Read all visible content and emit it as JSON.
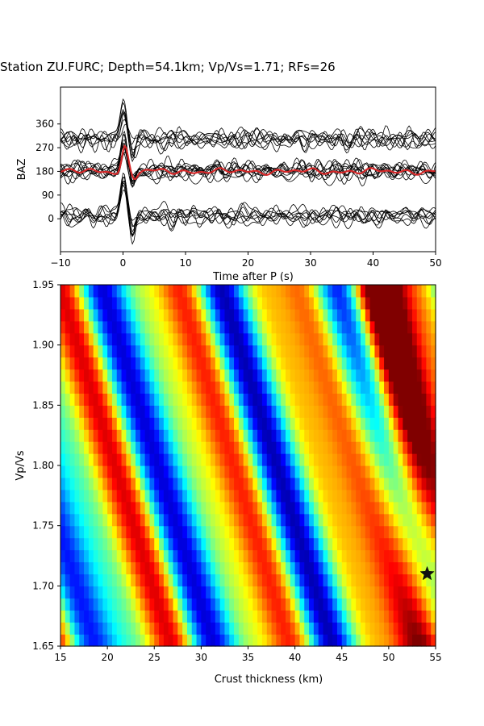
{
  "title": "Station ZU.FURC; Depth=54.1km; Vp/Vs=1.71; RFs=26",
  "chart_data": [
    {
      "type": "line",
      "xlabel": "Time after P (s)",
      "ylabel": "BAZ",
      "xlim": [
        -10,
        50
      ],
      "ylim": [
        -125,
        500
      ],
      "xticks": [
        "−10",
        "0",
        "10",
        "20",
        "30",
        "40",
        "50"
      ],
      "yticks": [
        "0",
        "90",
        "180",
        "270",
        "360"
      ],
      "baz_groups": [
        {
          "baz": 10,
          "traces": 8
        },
        {
          "baz": 180,
          "traces": 10
        },
        {
          "baz": 300,
          "traces": 8
        }
      ],
      "stack_series": {
        "name": "",
        "baseline": 180,
        "peak_time": 0.3,
        "peak_value": 272,
        "color": "#d62728"
      },
      "trace_color": "#000000"
    },
    {
      "type": "heatmap",
      "xlabel": "Crust thickness (km)",
      "ylabel": "Vp/Vs",
      "xlim": [
        15,
        55
      ],
      "ylim": [
        1.65,
        1.95
      ],
      "xticks": [
        "15",
        "20",
        "25",
        "30",
        "35",
        "40",
        "45",
        "50",
        "55"
      ],
      "yticks": [
        "1.65",
        "1.70",
        "1.75",
        "1.80",
        "1.85",
        "1.90",
        "1.95"
      ],
      "colormap": "jet",
      "best_fit": {
        "H": 54.1,
        "vpvs": 1.71
      },
      "marker": "star"
    }
  ]
}
